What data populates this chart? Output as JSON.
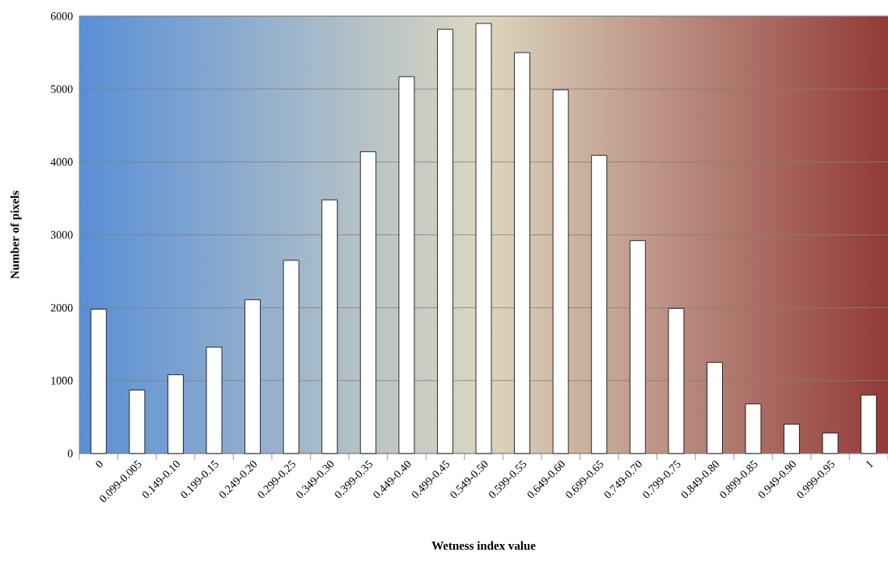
{
  "chart_data": {
    "type": "bar",
    "categories": [
      "0",
      "0.099-0.005",
      "0.149-0.10",
      "0.199-0.15",
      "0.249-0.20",
      "0.299-0.25",
      "0.349-0.30",
      "0.399-0.35",
      "0.449-0.40",
      "0.499-0.45",
      "0.549-0.50",
      "0.599-0.55",
      "0.649-0.60",
      "0.699-0.65",
      "0.749-0.70",
      "0.799-0.75",
      "0.849-0.80",
      "0.899-0.85",
      "0.949-0.90",
      "0.999-0.95",
      "1"
    ],
    "values": [
      1980,
      870,
      1080,
      1460,
      2110,
      2650,
      3480,
      4140,
      5170,
      5820,
      5900,
      5500,
      4990,
      4090,
      2920,
      1990,
      1250,
      680,
      400,
      280,
      800
    ],
    "color": "#ffffff",
    "xlabel": "Wetness index value",
    "ylabel": "Number of pixels",
    "ylim": [
      0,
      6000
    ],
    "yticks": [
      0,
      1000,
      2000,
      3000,
      4000,
      5000,
      6000
    ],
    "grid": "y"
  }
}
